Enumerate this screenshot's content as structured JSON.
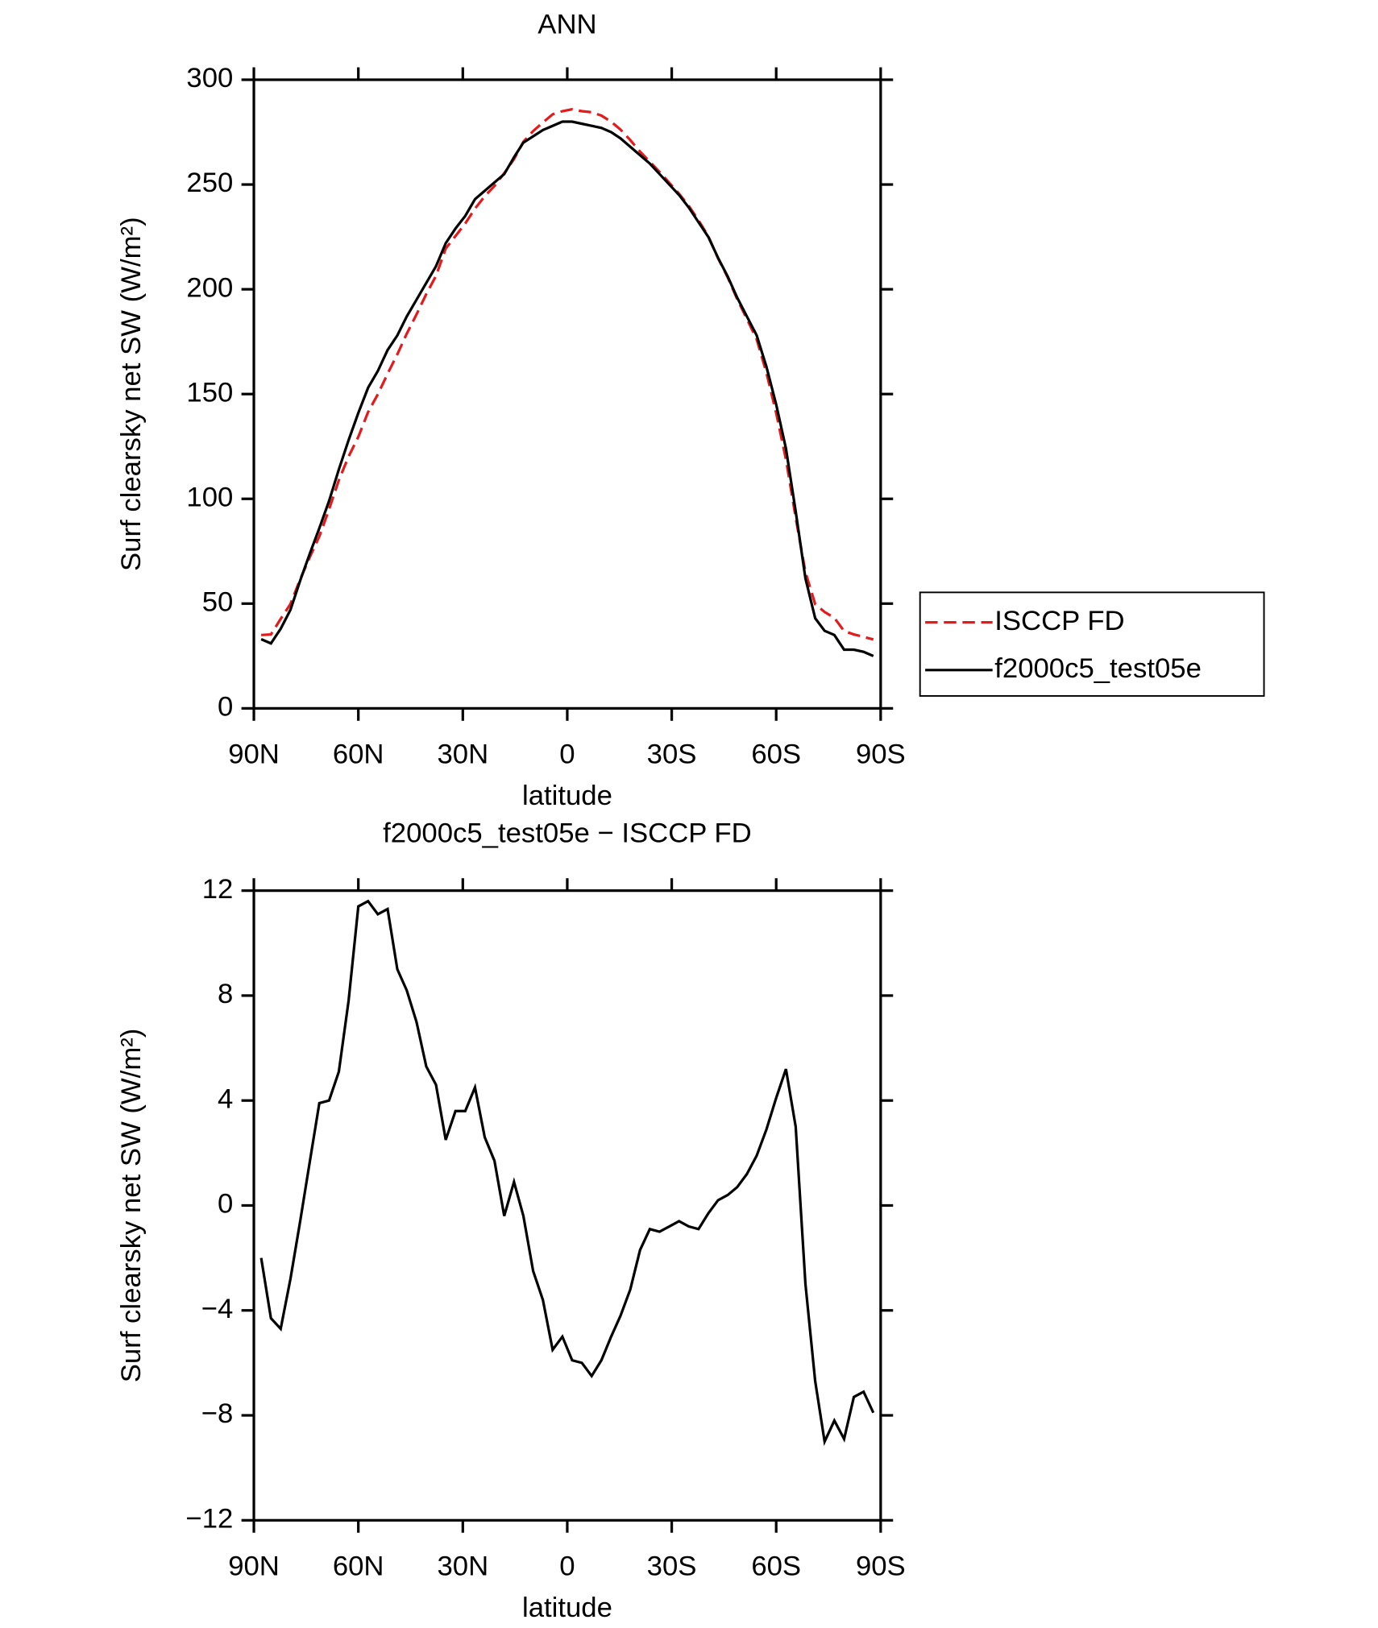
{
  "chart_data": [
    {
      "type": "line",
      "title": "ANN",
      "xlabel": "latitude",
      "ylabel": "Surf clearsky net SW (W/m²)",
      "x": [
        87.9,
        85.1,
        82.3,
        79.5,
        76.7,
        73.9,
        71.2,
        68.4,
        65.6,
        62.8,
        60.0,
        57.2,
        54.4,
        51.6,
        48.8,
        46.1,
        43.3,
        40.5,
        37.7,
        34.9,
        32.1,
        29.3,
        26.5,
        23.7,
        20.9,
        18.1,
        15.3,
        12.6,
        9.8,
        7.0,
        4.2,
        1.4,
        -1.4,
        -4.2,
        -7.0,
        -9.8,
        -12.6,
        -15.3,
        -18.1,
        -20.9,
        -23.7,
        -26.5,
        -29.3,
        -32.1,
        -34.9,
        -37.7,
        -40.5,
        -43.3,
        -46.1,
        -48.8,
        -51.6,
        -54.4,
        -57.2,
        -60.0,
        -62.8,
        -65.6,
        -68.4,
        -71.2,
        -73.9,
        -76.7,
        -79.5,
        -82.3,
        -85.1,
        -87.9
      ],
      "series": [
        {
          "name": "ISCCP FD",
          "color": "#e41a1c",
          "linestyle": "dashed",
          "values": [
            35.0,
            35.3,
            42.7,
            49.8,
            61.6,
            72.3,
            82.1,
            95.0,
            108.9,
            120.2,
            129.6,
            141.4,
            149.9,
            159.7,
            169.0,
            178.8,
            188.0,
            197.7,
            206.4,
            219.5,
            225.4,
            231.4,
            238.5,
            244.4,
            249.3,
            255.4,
            262.1,
            270.4,
            275.5,
            279.6,
            283.5,
            285.0,
            285.9,
            285.0,
            284.5,
            282.9,
            280.0,
            276.2,
            271.2,
            265.7,
            260.9,
            256.0,
            250.8,
            245.6,
            239.8,
            232.9,
            225.3,
            214.8,
            205.6,
            195.3,
            185.8,
            176.1,
            160.1,
            140.9,
            118.8,
            91.0,
            65.0,
            49.7,
            46.0,
            43.2,
            36.9,
            35.3,
            34.1,
            32.9
          ]
        },
        {
          "name": "f2000c5_test05e",
          "color": "#000000",
          "linestyle": "solid",
          "values": [
            33,
            31,
            38,
            47,
            61,
            74,
            86,
            99,
            114,
            128,
            141,
            153,
            161,
            171,
            178,
            187,
            195,
            203,
            211,
            222,
            229,
            235,
            243,
            247,
            251,
            255,
            263,
            270,
            273,
            276,
            278,
            280,
            280,
            279,
            278,
            277,
            275,
            272,
            268,
            264,
            260,
            255,
            250,
            245,
            239,
            232,
            225,
            215,
            206,
            196,
            187,
            178,
            163,
            145,
            124,
            94,
            62,
            43,
            37,
            35,
            28,
            28,
            27,
            25
          ]
        }
      ],
      "xlim": [
        90,
        -90
      ],
      "xticks": [
        {
          "value": 90,
          "label": "90N"
        },
        {
          "value": 60,
          "label": "60N"
        },
        {
          "value": 30,
          "label": "30N"
        },
        0,
        {
          "value": -30,
          "label": "30S"
        },
        {
          "value": -60,
          "label": "60S"
        },
        {
          "value": -90,
          "label": "90S"
        }
      ],
      "ylim": [
        0,
        300
      ],
      "yticks": [
        0,
        50,
        100,
        150,
        200,
        250,
        300
      ],
      "legend": "right"
    },
    {
      "type": "line",
      "title": "f2000c5_test05e − ISCCP FD",
      "xlabel": "latitude",
      "ylabel": "Surf clearsky net SW (W/m²)",
      "x": [
        87.9,
        85.1,
        82.3,
        79.5,
        76.7,
        73.9,
        71.2,
        68.4,
        65.6,
        62.8,
        60.0,
        57.2,
        54.4,
        51.6,
        48.8,
        46.1,
        43.3,
        40.5,
        37.7,
        34.9,
        32.1,
        29.3,
        26.5,
        23.7,
        20.9,
        18.1,
        15.3,
        12.6,
        9.8,
        7.0,
        4.2,
        1.4,
        -1.4,
        -4.2,
        -7.0,
        -9.8,
        -12.6,
        -15.3,
        -18.1,
        -20.9,
        -23.7,
        -26.5,
        -29.3,
        -32.1,
        -34.9,
        -37.7,
        -40.5,
        -43.3,
        -46.1,
        -48.8,
        -51.6,
        -54.4,
        -57.2,
        -60.0,
        -62.8,
        -65.6,
        -68.4,
        -71.2,
        -73.9,
        -76.7,
        -79.5,
        -82.3,
        -85.1,
        -87.9
      ],
      "series": [
        {
          "color": "#000000",
          "linestyle": "solid",
          "values": [
            -2.0,
            -4.3,
            -4.7,
            -2.8,
            -0.6,
            1.7,
            3.9,
            4.0,
            5.1,
            7.8,
            11.4,
            11.6,
            11.1,
            11.3,
            9.0,
            8.2,
            7.0,
            5.3,
            4.6,
            2.5,
            3.6,
            3.6,
            4.5,
            2.6,
            1.7,
            -0.4,
            0.9,
            -0.4,
            -2.5,
            -3.6,
            -5.5,
            -5.0,
            -5.9,
            -6.0,
            -6.5,
            -5.9,
            -5.0,
            -4.2,
            -3.2,
            -1.7,
            -0.9,
            -1.0,
            -0.8,
            -0.6,
            -0.8,
            -0.9,
            -0.3,
            0.2,
            0.4,
            0.7,
            1.2,
            1.9,
            2.9,
            4.1,
            5.2,
            3.0,
            -3.0,
            -6.7,
            -9.0,
            -8.2,
            -8.9,
            -7.3,
            -7.1,
            -7.9
          ]
        }
      ],
      "xlim": [
        90,
        -90
      ],
      "xticks": [
        {
          "value": 90,
          "label": "90N"
        },
        {
          "value": 60,
          "label": "60N"
        },
        {
          "value": 30,
          "label": "30N"
        },
        0,
        {
          "value": -30,
          "label": "30S"
        },
        {
          "value": -60,
          "label": "60S"
        },
        {
          "value": -90,
          "label": "90S"
        }
      ],
      "ylim": [
        -12,
        12
      ],
      "yticks": [
        {
          "value": -12,
          "label": "−12"
        },
        {
          "value": -8,
          "label": "−8"
        },
        {
          "value": -4,
          "label": "−4"
        },
        0,
        4,
        8,
        12
      ]
    }
  ]
}
